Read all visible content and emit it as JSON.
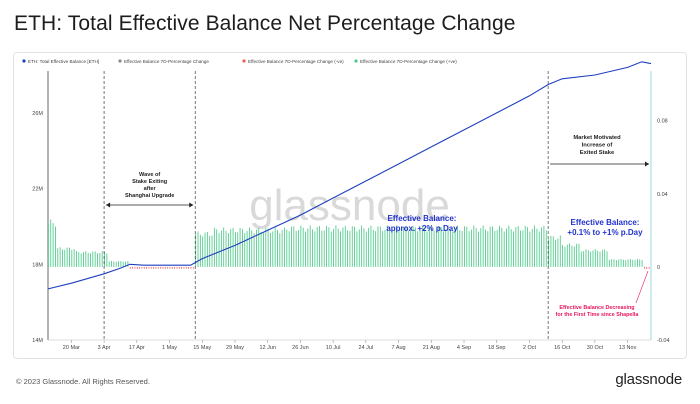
{
  "header": {
    "title": "ETH: Total Effective Balance Net Percentage Change"
  },
  "footer": {
    "copyright": "© 2023 Glassnode. All Rights Reserved.",
    "logo": "glassnode"
  },
  "watermark": "glassnode",
  "colors": {
    "balance_line": "#1f3fbf",
    "neutral_bar": "#8a8a8a",
    "negative_bar": "#f06060",
    "positive_bar": "#4cc98a",
    "right_axis": "#9ad9e0",
    "annotation_blue": "#2233cc",
    "annotation_pink": "#e8175d",
    "text": "#222222"
  },
  "chart_data": {
    "type": "line",
    "legend": [
      {
        "label": "ETH: Total Effective Balance [ETH]",
        "color": "#1f3fbf",
        "marker": "dot"
      },
      {
        "label": "Effective Balance 7D-Percentage Change",
        "color": "#8a8a8a",
        "marker": "dot"
      },
      {
        "label": "Effective Balance 7D-Percentage Change (-ve)",
        "color": "#f06060",
        "marker": "dot"
      },
      {
        "label": "Effective Balance 7D-Percentage Change (+ve)",
        "color": "#4cc98a",
        "marker": "dot"
      }
    ],
    "legend_placement": "top-left",
    "x_ticks": [
      "20 Mar",
      "3 Apr",
      "17 Apr",
      "1 May",
      "15 May",
      "29 May",
      "12 Jun",
      "26 Jun",
      "10 Jul",
      "24 Jul",
      "7 Aug",
      "21 Aug",
      "4 Sep",
      "18 Sep",
      "2 Oct",
      "16 Oct",
      "30 Oct",
      "13 Nov"
    ],
    "y_left_ticks": [
      "14M",
      "18M",
      "22M",
      "26M"
    ],
    "y_left_range": [
      14000000,
      28000000
    ],
    "y_right_ticks": [
      "-0.04",
      "0",
      "0.04",
      "0.08"
    ],
    "y_right_range": [
      -0.04,
      0.105
    ],
    "balance_series": {
      "name": "ETH: Total Effective Balance [ETH]",
      "x": [
        "2023-03-10",
        "2023-03-20",
        "2023-04-03",
        "2023-04-10",
        "2023-04-14",
        "2023-04-20",
        "2023-05-01",
        "2023-05-10",
        "2023-05-15",
        "2023-05-29",
        "2023-06-12",
        "2023-06-26",
        "2023-07-10",
        "2023-07-24",
        "2023-08-07",
        "2023-08-21",
        "2023-09-04",
        "2023-09-18",
        "2023-10-02",
        "2023-10-10",
        "2023-10-16",
        "2023-10-30",
        "2023-11-13",
        "2023-11-19",
        "2023-11-23"
      ],
      "y": [
        16700000,
        17000000,
        17500000,
        17800000,
        18000000,
        17950000,
        17950000,
        17950000,
        18300000,
        19000000,
        19800000,
        20600000,
        21500000,
        22400000,
        23300000,
        24200000,
        25100000,
        26000000,
        26900000,
        27500000,
        27800000,
        28000000,
        28400000,
        28700000,
        28600000
      ]
    },
    "change_bars": {
      "name": "Effective Balance 7D-Percentage Change",
      "x_range": [
        "2023-03-10",
        "2023-11-23"
      ],
      "segments": [
        {
          "from": "2023-03-10",
          "to": "2023-03-14",
          "value": 0.024
        },
        {
          "from": "2023-03-14",
          "to": "2023-03-22",
          "value": 0.01
        },
        {
          "from": "2023-03-22",
          "to": "2023-04-05",
          "value": 0.008
        },
        {
          "from": "2023-04-05",
          "to": "2023-04-14",
          "value": 0.003
        },
        {
          "from": "2023-04-14",
          "to": "2023-05-12",
          "value": -0.001
        },
        {
          "from": "2023-05-12",
          "to": "2023-05-20",
          "value": 0.018
        },
        {
          "from": "2023-05-20",
          "to": "2023-06-20",
          "value": 0.02
        },
        {
          "from": "2023-06-20",
          "to": "2023-10-10",
          "value": 0.021
        },
        {
          "from": "2023-10-10",
          "to": "2023-10-16",
          "value": 0.016
        },
        {
          "from": "2023-10-16",
          "to": "2023-10-24",
          "value": 0.012
        },
        {
          "from": "2023-10-24",
          "to": "2023-11-05",
          "value": 0.009
        },
        {
          "from": "2023-11-05",
          "to": "2023-11-20",
          "value": 0.004
        },
        {
          "from": "2023-11-20",
          "to": "2023-11-23",
          "value": -0.001
        }
      ]
    },
    "vertical_markers": [
      "2023-04-03",
      "2023-05-12",
      "2023-10-10"
    ],
    "annotations": [
      {
        "text": [
          "Wave of",
          "Stake Exiting",
          "after",
          "Shanghai Upgrade"
        ],
        "color": "#222222",
        "bold": true
      },
      {
        "text": [
          "Effective Balance:",
          "approx. +2% p.Day"
        ],
        "color": "#2233cc",
        "bold": true
      },
      {
        "text": [
          "Market Motivated",
          "Increase of",
          "Exited Stake"
        ],
        "color": "#222222",
        "bold": true
      },
      {
        "text": [
          "Effective Balance:",
          "+0.1% to +1% p.Day"
        ],
        "color": "#2233cc",
        "bold": true
      },
      {
        "text": [
          "Effective Balance Decreasing",
          "for the First Time since Shapella"
        ],
        "color": "#e8175d",
        "bold": true
      }
    ],
    "grid": false
  }
}
